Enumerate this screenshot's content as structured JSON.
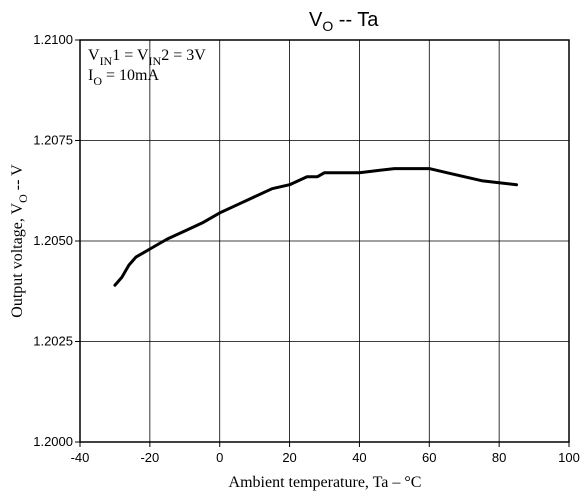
{
  "chart_data": {
    "type": "line",
    "title": "VO -- Ta",
    "title_main": "V",
    "title_sub": "O",
    "title_rest": " -- Ta",
    "xlabel": "Ambient temperature, Ta – °C",
    "ylabel": "Output voltage, V",
    "ylabel_sub": "O",
    "ylabel_rest": " -- V",
    "xlim": [
      -40,
      100
    ],
    "ylim": [
      1.2,
      1.21
    ],
    "x_ticks": [
      "-40",
      "-20",
      "0",
      "20",
      "40",
      "60",
      "80",
      "100"
    ],
    "y_ticks": [
      "1.2000",
      "1.2025",
      "1.2050",
      "1.2075",
      "1.2100"
    ],
    "grid": true,
    "annotations": {
      "line1": {
        "a": "V",
        "a_sub": "IN",
        "b": "1 = V",
        "b_sub": "IN",
        "c": "2 = 3V"
      },
      "line2": {
        "a": "I",
        "a_sub": "O",
        "b": " = 10mA"
      }
    },
    "series": [
      {
        "x": [
          -30,
          -28,
          -26,
          -24,
          -22,
          -20,
          -15,
          -10,
          -5,
          0,
          5,
          10,
          15,
          20,
          25,
          28,
          30,
          33,
          35,
          40,
          45,
          50,
          55,
          60,
          65,
          70,
          75,
          80,
          85
        ],
        "y": [
          1.2039,
          1.2041,
          1.2044,
          1.2046,
          1.2047,
          1.2048,
          1.20505,
          1.20525,
          1.20545,
          1.2057,
          1.2059,
          1.2061,
          1.2063,
          1.2064,
          1.2066,
          1.2066,
          1.2067,
          1.2067,
          1.2067,
          1.2067,
          1.20675,
          1.2068,
          1.2068,
          1.2068,
          1.2067,
          1.2066,
          1.2065,
          1.20645,
          1.2064
        ]
      }
    ]
  }
}
